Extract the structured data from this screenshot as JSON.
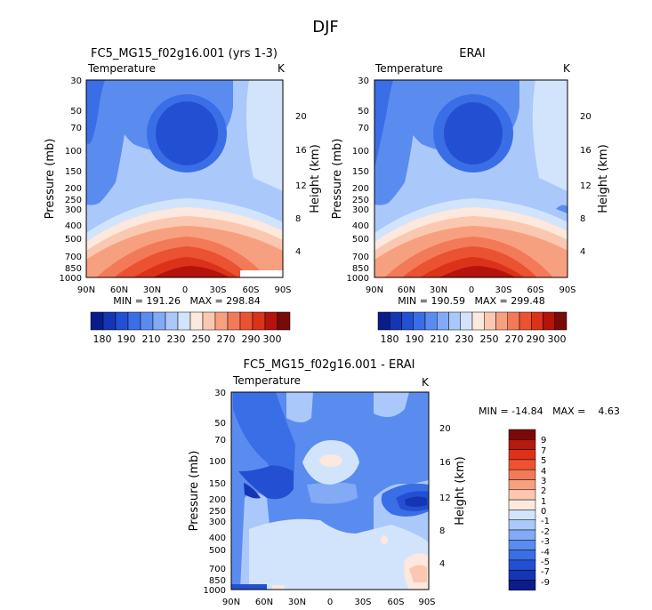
{
  "figure": {
    "title": "DJF"
  },
  "chart_data": [
    {
      "type": "heatmap",
      "title": "FC5_MG15_f02g16.001 (yrs 1-3)",
      "subtitle_left": "Temperature",
      "units": "K",
      "ylabel": "Pressure (mb)",
      "ylabel_right": "Height (km)",
      "x_ticks": [
        "90N",
        "60N",
        "30N",
        "0",
        "30S",
        "60S",
        "90S"
      ],
      "y_ticks": [
        "30",
        "50",
        "70",
        "100",
        "150",
        "200",
        "250",
        "300",
        "400",
        "500",
        "700",
        "850",
        "1000"
      ],
      "y_ticks_right": [
        "20",
        "16",
        "12",
        "8",
        "4"
      ],
      "stats": "MIN = 191.26   MAX = 298.84",
      "min": 191.26,
      "max": 298.84
    },
    {
      "type": "heatmap",
      "title": "ERAI",
      "subtitle_left": "Temperature",
      "units": "K",
      "ylabel": "Pressure (mb)",
      "ylabel_right": "Height (km)",
      "x_ticks": [
        "90N",
        "60N",
        "30N",
        "0",
        "30S",
        "60S",
        "90S"
      ],
      "y_ticks": [
        "30",
        "50",
        "70",
        "100",
        "150",
        "200",
        "250",
        "300",
        "400",
        "500",
        "700",
        "850",
        "1000"
      ],
      "y_ticks_right": [
        "20",
        "16",
        "12",
        "8",
        "4"
      ],
      "stats": "MIN = 190.59   MAX = 299.48",
      "min": 190.59,
      "max": 299.48
    },
    {
      "type": "heatmap",
      "title": "FC5_MG15_f02g16.001 - ERAI",
      "subtitle_left": "Temperature",
      "units": "K",
      "ylabel": "Pressure (mb)",
      "ylabel_right": "Height (km)",
      "x_ticks": [
        "90N",
        "60N",
        "30N",
        "0",
        "30S",
        "60S",
        "90S"
      ],
      "y_ticks": [
        "30",
        "50",
        "70",
        "100",
        "150",
        "200",
        "250",
        "300",
        "400",
        "500",
        "700",
        "850",
        "1000"
      ],
      "y_ticks_right": [
        "20",
        "16",
        "12",
        "8",
        "4"
      ],
      "stats": "MIN = -14.84   MAX =    4.63",
      "min": -14.84,
      "max": 4.63
    }
  ],
  "colorbar_abs": {
    "labels": [
      "180",
      "190",
      "210",
      "230",
      "250",
      "270",
      "290",
      "300"
    ],
    "colors": [
      "#0a1c8c",
      "#1436b4",
      "#2350d2",
      "#3a6ee6",
      "#5a8cf0",
      "#82aaf5",
      "#aac8fa",
      "#d2e4fc",
      "#fce8dc",
      "#fac8b0",
      "#f7a080",
      "#f27a58",
      "#ea5232",
      "#dc321a",
      "#b4140c",
      "#780a0a"
    ]
  },
  "colorbar_diff": {
    "labels": [
      "9",
      "7",
      "5",
      "4",
      "3",
      "2",
      "1",
      "0",
      "-1",
      "-2",
      "-3",
      "-4",
      "-5",
      "-7",
      "-9"
    ],
    "colors": [
      "#7a0a0a",
      "#b41a10",
      "#dc3218",
      "#ee5230",
      "#f27a58",
      "#f7a080",
      "#fac8b0",
      "#fce8dc",
      "#d2e4fc",
      "#aac8fa",
      "#82aaf5",
      "#5a8cf0",
      "#3a6ee6",
      "#2350d2",
      "#1436b4",
      "#0a1c8c"
    ]
  }
}
